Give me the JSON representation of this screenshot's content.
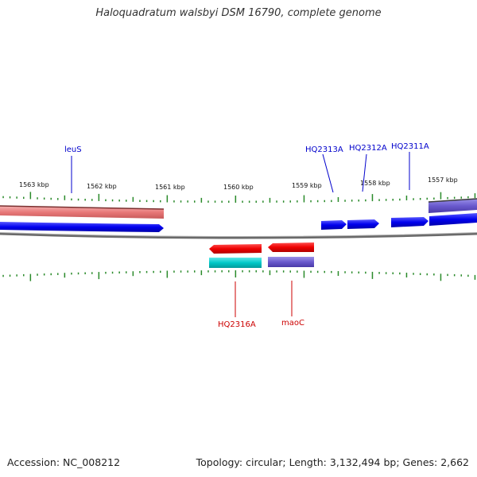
{
  "title": "Haloquadratum walsbyi DSM 16790, complete genome",
  "accession": "Accession: NC_008212",
  "summary": "Topology: circular; Length: 3,132,494 bp; Genes: 2,662",
  "colors": {
    "plus_cds": "#0000ee",
    "plus_rna": "#e87878",
    "plus_other": "#6a5acd",
    "minus_cds": "#ee0000",
    "minus_other": "#00c8c8",
    "minus_other2": "#6a5acd",
    "backbone": "#777777",
    "tick": "#2a8a2a",
    "plus_label": "#0000cc",
    "minus_label": "#cc0000"
  },
  "scale": {
    "ticks": [
      {
        "label": "1563 kbp"
      },
      {
        "label": "1562 kbp"
      },
      {
        "label": "1561 kbp"
      },
      {
        "label": "1560 kbp"
      },
      {
        "label": "1559 kbp"
      },
      {
        "label": "1558 kbp"
      },
      {
        "label": "1557 kbp"
      }
    ]
  },
  "genes": {
    "plus_labels": [
      "leuS",
      "HQ2313A",
      "HQ2312A",
      "HQ2311A"
    ],
    "minus_labels": [
      "HQ2316A",
      "maoC"
    ]
  }
}
